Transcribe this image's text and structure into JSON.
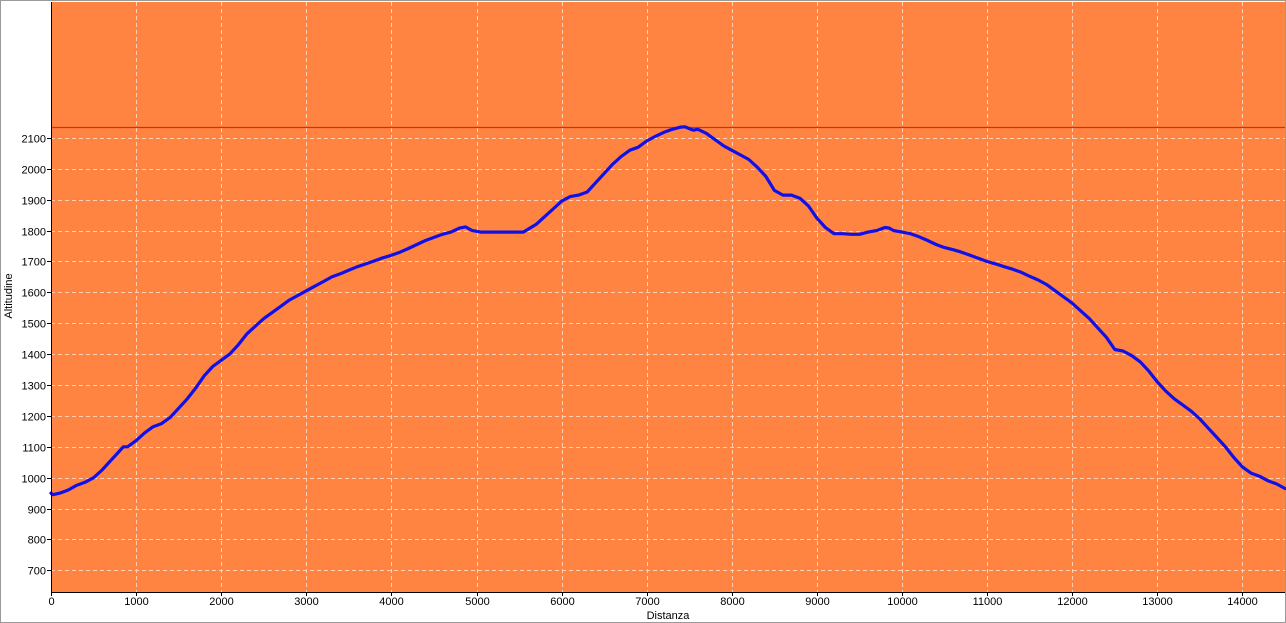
{
  "chart_data": {
    "type": "line",
    "title": "",
    "xlabel": "Distanza",
    "ylabel": "Altitudine",
    "xlim": [
      0,
      14500
    ],
    "ylim": [
      630,
      2540
    ],
    "xticks": [
      0,
      1000,
      2000,
      3000,
      4000,
      5000,
      6000,
      7000,
      8000,
      9000,
      10000,
      11000,
      12000,
      13000,
      14000
    ],
    "yticks": [
      700,
      800,
      900,
      1000,
      1100,
      1200,
      1300,
      1400,
      1500,
      1600,
      1700,
      1800,
      1900,
      2000,
      2100
    ],
    "grid": true,
    "reference_line": {
      "value": 2136,
      "color": "#e8231f"
    },
    "colors": {
      "plot_background": "#ff8442",
      "line": "#1010e8",
      "grid": "#ffd2b8"
    },
    "series": [
      {
        "x": [
          0,
          20,
          100,
          200,
          300,
          400,
          500,
          600,
          700,
          800,
          850,
          900,
          1000,
          1100,
          1200,
          1300,
          1400,
          1500,
          1600,
          1700,
          1800,
          1900,
          2000,
          2100,
          2200,
          2300,
          2400,
          2500,
          2600,
          2700,
          2800,
          2900,
          3000,
          3100,
          3200,
          3300,
          3400,
          3500,
          3600,
          3700,
          3800,
          3900,
          4000,
          4100,
          4200,
          4300,
          4400,
          4500,
          4600,
          4700,
          4800,
          4870,
          4950,
          5050,
          5200,
          5400,
          5550,
          5700,
          5800,
          5900,
          6000,
          6100,
          6200,
          6300,
          6400,
          6500,
          6600,
          6700,
          6800,
          6900,
          7000,
          7100,
          7200,
          7300,
          7400,
          7450,
          7500,
          7550,
          7600,
          7700,
          7800,
          7900,
          8000,
          8100,
          8200,
          8300,
          8400,
          8500,
          8600,
          8700,
          8800,
          8900,
          9000,
          9100,
          9200,
          9300,
          9400,
          9500,
          9600,
          9700,
          9800,
          9850,
          9900,
          10000,
          10100,
          10200,
          10300,
          10400,
          10500,
          10600,
          10700,
          10800,
          10900,
          11000,
          11100,
          11200,
          11300,
          11400,
          11500,
          11600,
          11700,
          11800,
          11900,
          12000,
          12100,
          12200,
          12300,
          12400,
          12500,
          12600,
          12700,
          12800,
          12900,
          13000,
          13100,
          13200,
          13300,
          13400,
          13500,
          13600,
          13700,
          13800,
          13900,
          14000,
          14100,
          14200,
          14300,
          14400,
          14500
        ],
        "y": [
          950,
          945,
          950,
          960,
          975,
          985,
          1000,
          1025,
          1055,
          1085,
          1100,
          1100,
          1120,
          1145,
          1165,
          1175,
          1195,
          1225,
          1255,
          1290,
          1330,
          1360,
          1380,
          1400,
          1430,
          1465,
          1490,
          1515,
          1535,
          1555,
          1575,
          1590,
          1605,
          1620,
          1635,
          1650,
          1660,
          1672,
          1683,
          1692,
          1702,
          1712,
          1720,
          1730,
          1742,
          1755,
          1768,
          1778,
          1788,
          1795,
          1808,
          1812,
          1800,
          1795,
          1795,
          1795,
          1795,
          1820,
          1845,
          1870,
          1895,
          1910,
          1915,
          1925,
          1955,
          1985,
          2015,
          2040,
          2060,
          2070,
          2090,
          2105,
          2118,
          2128,
          2135,
          2136,
          2130,
          2125,
          2128,
          2115,
          2095,
          2075,
          2060,
          2045,
          2030,
          2005,
          1975,
          1930,
          1915,
          1915,
          1905,
          1880,
          1840,
          1810,
          1790,
          1790,
          1788,
          1788,
          1795,
          1800,
          1810,
          1808,
          1800,
          1795,
          1790,
          1780,
          1768,
          1755,
          1745,
          1738,
          1730,
          1720,
          1710,
          1700,
          1692,
          1683,
          1675,
          1665,
          1652,
          1640,
          1625,
          1605,
          1585,
          1565,
          1540,
          1515,
          1485,
          1455,
          1415,
          1410,
          1395,
          1375,
          1345,
          1310,
          1280,
          1255,
          1235,
          1215,
          1190,
          1160,
          1130,
          1100,
          1065,
          1035,
          1015,
          1005,
          990,
          980,
          965
        ]
      }
    ]
  }
}
